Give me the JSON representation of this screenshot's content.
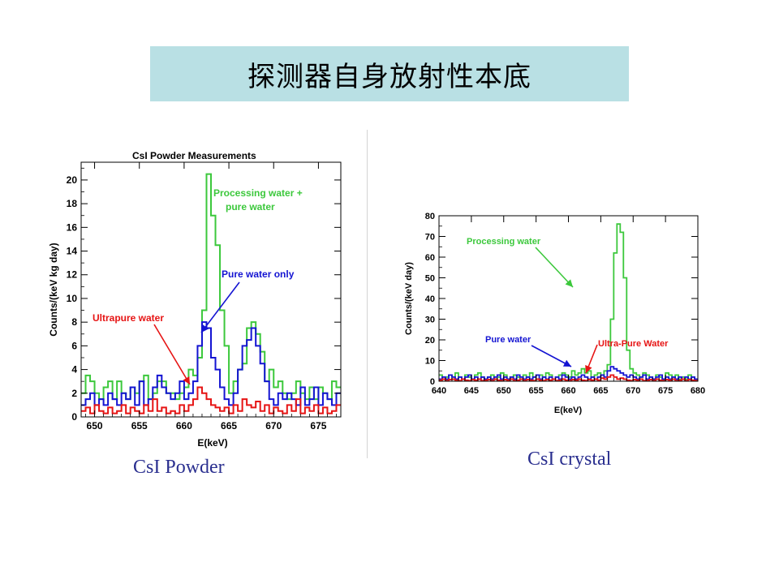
{
  "slide": {
    "title": "探测器自身放射性本底",
    "caption_left": "CsI Powder",
    "caption_right": "CsI crystal"
  },
  "colors": {
    "green": "#3cc83c",
    "blue": "#1414d2",
    "red": "#e61414",
    "title_bg": "#b9e0e4",
    "caption": "#2a2f8f"
  },
  "chart_data": [
    {
      "type": "line",
      "title": "CsI Powder Measurements",
      "xlabel": "E(keV)",
      "ylabel": "Counts/(keV kg day)",
      "xlim": [
        648.5,
        677.5
      ],
      "ylim": [
        0,
        21.5
      ],
      "xticks": [
        650,
        655,
        660,
        665,
        670,
        675
      ],
      "yticks": [
        0,
        2,
        4,
        6,
        8,
        10,
        12,
        14,
        16,
        18,
        20
      ],
      "bin_start": 648.5,
      "bin_width": 0.5,
      "series": [
        {
          "name": "Processing water + pure water",
          "color": "green",
          "values": [
            2,
            3.5,
            3,
            2,
            1.5,
            2.5,
            3,
            1.5,
            3,
            2,
            1.5,
            2.5,
            2,
            3,
            3.5,
            1.5,
            2,
            3,
            3,
            2,
            2,
            1.5,
            2,
            2.5,
            4,
            3.5,
            5,
            9,
            20.5,
            17,
            14.5,
            9,
            6,
            2,
            3,
            4,
            4.5,
            7.5,
            8,
            7,
            5.5,
            3,
            4,
            2.5,
            3,
            2,
            1.5,
            2,
            3,
            2,
            1.5,
            2.5,
            1.5,
            2.5,
            2,
            1.5,
            3,
            2.5
          ]
        },
        {
          "name": "Pure water only",
          "color": "blue",
          "values": [
            1,
            1.5,
            2,
            1,
            1.5,
            1,
            2,
            1.5,
            1,
            2,
            1.5,
            2.5,
            1,
            3,
            1,
            1.5,
            2.5,
            3.5,
            2.5,
            2,
            1.5,
            2,
            3,
            1.5,
            2,
            3,
            6,
            8,
            7.5,
            5,
            4,
            2.5,
            1.5,
            1,
            2,
            4,
            6,
            6.5,
            7.5,
            6,
            4.5,
            3,
            1.5,
            1,
            2,
            1.5,
            2,
            1.5,
            1,
            2.5,
            1,
            1.5,
            2.5,
            1,
            2,
            1.5,
            1,
            2
          ]
        },
        {
          "name": "Ultrapure water",
          "color": "red",
          "values": [
            0.5,
            0.8,
            0.3,
            1,
            0.5,
            0.3,
            0.8,
            0.3,
            0.5,
            1,
            0.3,
            0.8,
            0.5,
            0.3,
            1,
            0.5,
            1.5,
            0.5,
            0.8,
            0.3,
            0.5,
            0.3,
            1,
            0.5,
            1,
            1.5,
            2.5,
            2,
            1.5,
            1,
            0.8,
            0.5,
            0.8,
            0.3,
            1,
            0.5,
            1.5,
            1,
            0.8,
            1.3,
            0.5,
            1,
            0.3,
            0.8,
            0.5,
            0.3,
            1,
            0.5,
            1.5,
            0.3,
            0.8,
            0.5,
            1,
            0.3,
            0.8,
            0.3,
            0.5,
            1
          ]
        }
      ],
      "annotations": [
        "Processing water +",
        "pure water",
        "Pure water only",
        "Ultrapure water"
      ]
    },
    {
      "type": "line",
      "title": "",
      "xlabel": "E(keV)",
      "ylabel": "Counts/(keV day)",
      "xlim": [
        640,
        680
      ],
      "ylim": [
        0,
        80
      ],
      "xticks": [
        640,
        645,
        650,
        655,
        660,
        665,
        670,
        675,
        680
      ],
      "yticks": [
        0,
        10,
        20,
        30,
        40,
        50,
        60,
        70,
        80
      ],
      "bin_start": 640,
      "bin_width": 0.5,
      "series": [
        {
          "name": "Processing water",
          "color": "green",
          "values": [
            3,
            1,
            2,
            3,
            1,
            4,
            2,
            1,
            3,
            2,
            1,
            3,
            4,
            2,
            1,
            2,
            3,
            1,
            2,
            4,
            3,
            1,
            2,
            3,
            2,
            1,
            3,
            2,
            4,
            2,
            1,
            3,
            2,
            4,
            3,
            1,
            2,
            3,
            4,
            3,
            2,
            5,
            3,
            4,
            6,
            4,
            5,
            2,
            3,
            4,
            3,
            5,
            8,
            30,
            62,
            76,
            72,
            50,
            15,
            6,
            4,
            3,
            2,
            4,
            3,
            2,
            1,
            3,
            2,
            1,
            4,
            3,
            2,
            3,
            1,
            2,
            1,
            3,
            2,
            1
          ]
        },
        {
          "name": "Pure water",
          "color": "blue",
          "values": [
            1,
            2,
            1,
            3,
            2,
            1,
            2,
            1,
            2,
            3,
            1,
            2,
            1,
            2,
            1,
            2,
            1,
            2,
            3,
            1,
            2,
            1,
            2,
            1,
            3,
            2,
            1,
            2,
            1,
            2,
            3,
            1,
            2,
            1,
            2,
            1,
            2,
            1,
            3,
            2,
            1,
            2,
            1,
            2,
            3,
            2,
            1,
            2,
            1,
            2,
            3,
            2,
            5,
            7,
            6,
            5,
            4,
            3,
            2,
            3,
            2,
            1,
            2,
            3,
            1,
            2,
            1,
            2,
            3,
            1,
            2,
            1,
            2,
            1,
            2,
            1,
            2,
            1,
            2,
            1
          ]
        },
        {
          "name": "Ultra-Pure Water",
          "color": "red",
          "values": [
            0.5,
            1,
            0.3,
            0.8,
            1,
            0.5,
            0.3,
            1,
            0.5,
            0.3,
            0.8,
            0.5,
            1,
            0.3,
            0.5,
            0.8,
            0.3,
            1,
            0.5,
            0.3,
            0.8,
            0.5,
            1,
            0.3,
            0.5,
            1,
            0.3,
            0.8,
            0.5,
            0.3,
            1,
            0.5,
            0.3,
            0.8,
            0.5,
            1,
            0.3,
            0.5,
            1,
            0.5,
            0.3,
            0.8,
            0.5,
            1,
            0.5,
            0.3,
            0.8,
            0.5,
            1,
            0.5,
            1.5,
            1,
            2,
            3,
            2,
            1,
            1.5,
            1,
            0.5,
            0.3,
            0.8,
            0.5,
            1,
            0.3,
            0.5,
            0.8,
            0.3,
            1,
            0.5,
            0.3,
            0.8,
            0.5,
            1,
            0.3,
            0.5,
            1,
            0.3,
            0.8,
            0.5,
            0.3
          ]
        }
      ],
      "annotations": [
        "Processing water",
        "Pure water",
        "Ultra-Pure Water"
      ]
    }
  ]
}
